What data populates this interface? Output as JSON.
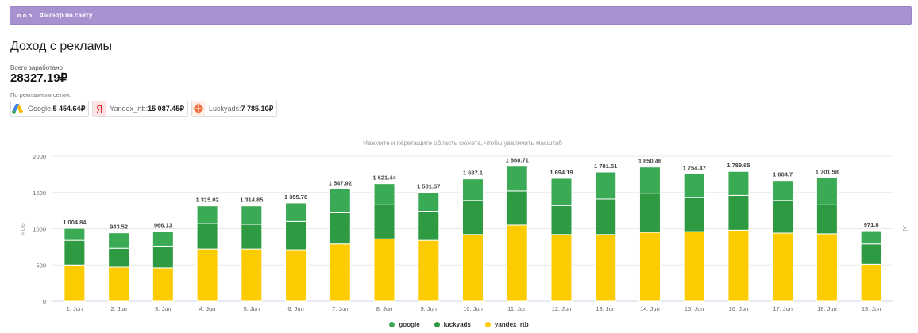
{
  "filter": {
    "label": "Фильтр по сайту"
  },
  "page_title": "Доход с рекламы",
  "total": {
    "caption": "Всего заработано",
    "value": "28327.19₽"
  },
  "networks": {
    "caption": "По рекламным сетям:",
    "items": [
      {
        "label": "Google: ",
        "value": "5 454.64₽",
        "icon": "google-ads-icon"
      },
      {
        "label": "Yandex_rtb: ",
        "value": "15 087.45₽",
        "icon": "yandex-icon"
      },
      {
        "label": "Luckyads: ",
        "value": "7 785.10₽",
        "icon": "luckyads-icon"
      }
    ]
  },
  "chart_hint": "Нажмите и перетащите область сюжета, чтобы увеличить масштаб",
  "chart_data": {
    "type": "bar",
    "stacked": true,
    "categories": [
      "1. Jun",
      "2. Jun",
      "3. Jun",
      "4. Jun",
      "5. Jun",
      "6. Jun",
      "7. Jun",
      "8. Jun",
      "9. Jun",
      "10. Jun",
      "11. Jun",
      "12. Jun",
      "13. Jun",
      "14. Jun",
      "15. Jun",
      "16. Jun",
      "17. Jun",
      "18. Jun",
      "19. Jun"
    ],
    "series": [
      {
        "name": "yandex_rtb",
        "color": "#fccc00",
        "values": [
          500,
          470,
          460,
          720,
          720,
          710,
          790,
          860,
          840,
          920,
          1050,
          920,
          920,
          950,
          960,
          980,
          940,
          930,
          510
        ]
      },
      {
        "name": "luckyads",
        "color": "#2e9a41",
        "values": [
          340,
          260,
          300,
          350,
          340,
          390,
          430,
          470,
          400,
          470,
          470,
          400,
          490,
          540,
          470,
          480,
          450,
          400,
          280
        ]
      },
      {
        "name": "google",
        "color": "#3aaa55",
        "values": [
          164.84,
          213.52,
          206.13,
          245.02,
          254.85,
          255.78,
          327.92,
          291.44,
          261.57,
          297.1,
          340.71,
          374.19,
          371.51,
          360.46,
          324.47,
          329.65,
          274.7,
          371.58,
          181.8
        ]
      }
    ],
    "totals": [
      "1 004.84",
      "943.52",
      "966.13",
      "1 315.02",
      "1 314.85",
      "1 355.78",
      "1 547.92",
      "1 621.44",
      "1 501.57",
      "1 687.1",
      "1 860.71",
      "1 694.19",
      "1 781.51",
      "1 850.46",
      "1 754.47",
      "1 789.65",
      "1 664.7",
      "1 701.58",
      "971.8"
    ],
    "ylabel": "RUB",
    "y2label": "All",
    "yticks": [
      0,
      500,
      1000,
      1500,
      2000
    ],
    "ylim": [
      0,
      2000
    ],
    "grid": true,
    "legend_placement": "bottom-center"
  }
}
